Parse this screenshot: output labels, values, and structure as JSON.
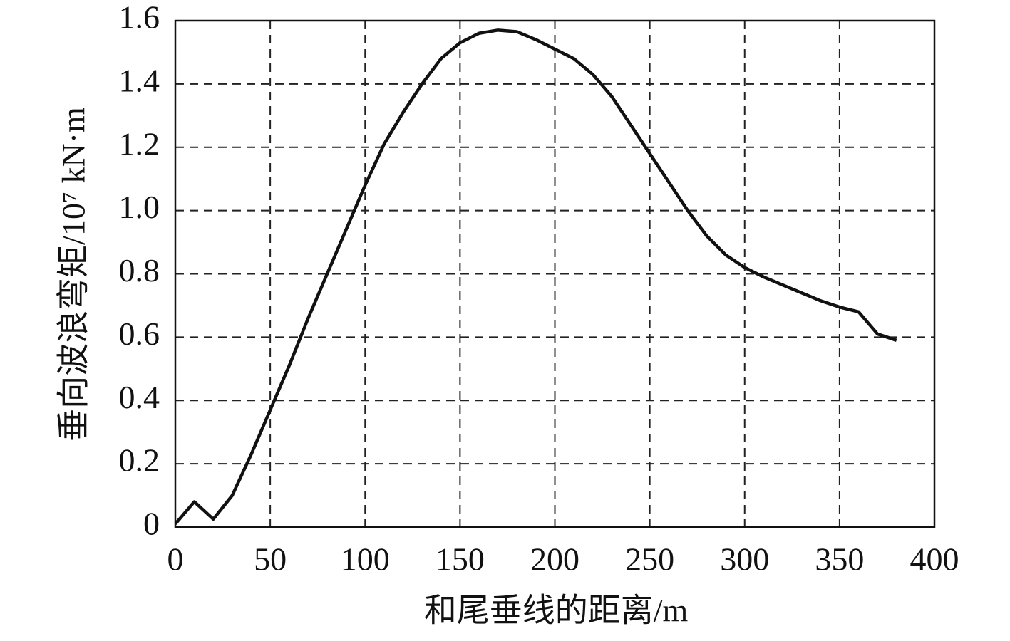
{
  "chart_data": {
    "type": "line",
    "x_label": "和尾垂线的距离/m",
    "y_label": "垂向波浪弯矩/10⁷ kN·m",
    "x": [
      0,
      10,
      20,
      30,
      40,
      50,
      60,
      70,
      80,
      90,
      100,
      110,
      120,
      130,
      140,
      150,
      160,
      170,
      180,
      190,
      200,
      210,
      220,
      230,
      240,
      250,
      260,
      270,
      280,
      290,
      300,
      310,
      320,
      330,
      340,
      350,
      360,
      370,
      380
    ],
    "values": [
      0.01,
      0.08,
      0.025,
      0.1,
      0.23,
      0.37,
      0.51,
      0.66,
      0.8,
      0.94,
      1.08,
      1.21,
      1.31,
      1.4,
      1.48,
      1.53,
      1.56,
      1.57,
      1.565,
      1.54,
      1.51,
      1.48,
      1.43,
      1.36,
      1.27,
      1.18,
      1.09,
      1.0,
      0.92,
      0.86,
      0.82,
      0.79,
      0.765,
      0.74,
      0.715,
      0.695,
      0.68,
      0.61,
      0.59
    ],
    "color": "#111111",
    "xlim": [
      0,
      400
    ],
    "xticks": [
      0,
      50,
      100,
      150,
      200,
      250,
      300,
      350,
      400
    ],
    "ylim": [
      0,
      1.6
    ],
    "yticks": [
      0,
      0.2,
      0.4,
      0.6,
      0.8,
      {
        "value": 1,
        "label": "1.0"
      },
      1.2,
      1.4,
      1.6
    ],
    "grid": true
  }
}
